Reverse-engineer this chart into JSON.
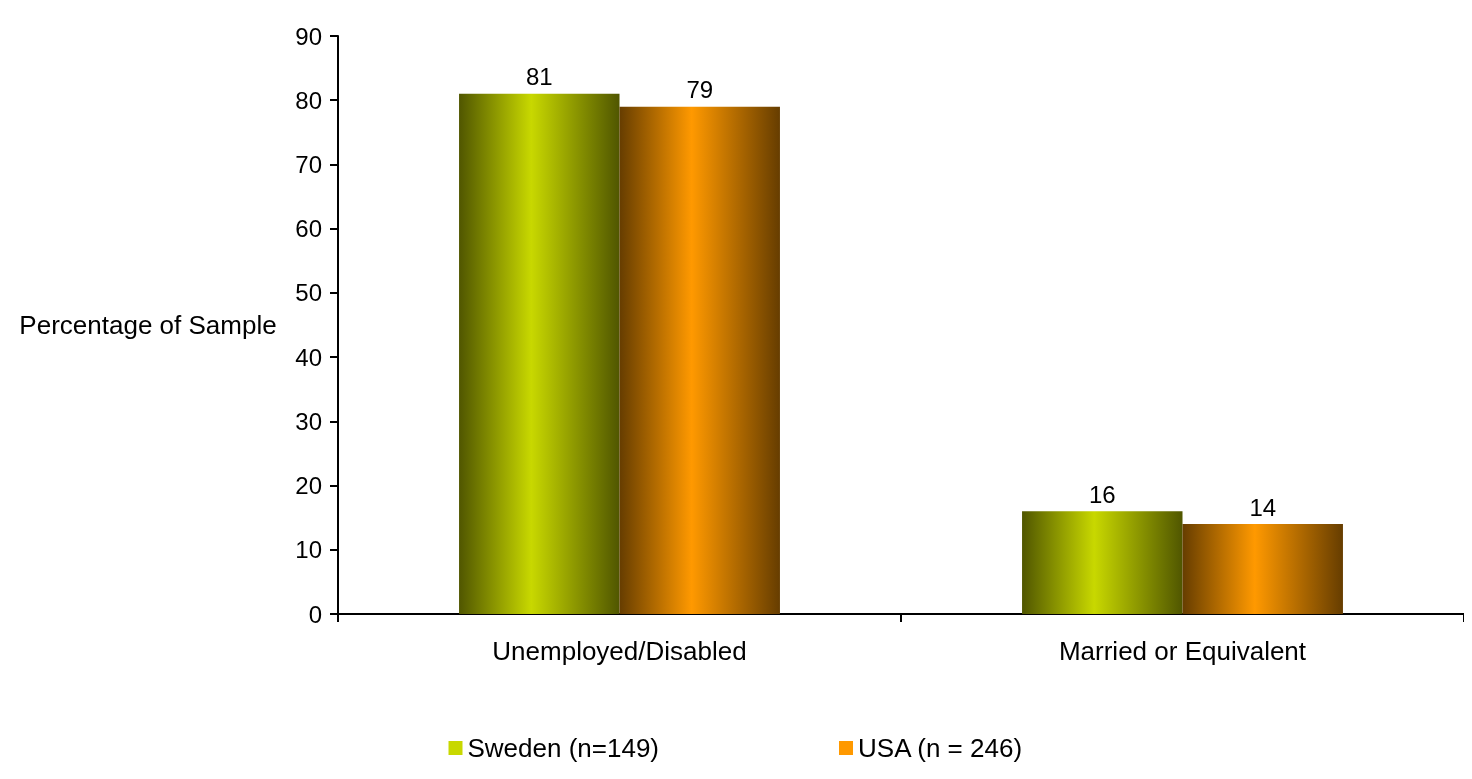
{
  "chart_data": {
    "type": "bar",
    "ylabel": "Percentage of Sample",
    "categories": [
      "Unemployed/Disabled",
      "Married or Equivalent"
    ],
    "series": [
      {
        "name": "Sweden (n=149)",
        "color": "#c8d800",
        "values": [
          81,
          16
        ]
      },
      {
        "name": "USA (n = 246)",
        "color": "#ff9900",
        "values": [
          79,
          14
        ]
      }
    ],
    "ylim": [
      0,
      90
    ],
    "yticks": [
      0,
      10,
      20,
      30,
      40,
      50,
      60,
      70,
      80,
      90
    ],
    "data_labels": true,
    "grid": false,
    "legend": "bottom"
  }
}
